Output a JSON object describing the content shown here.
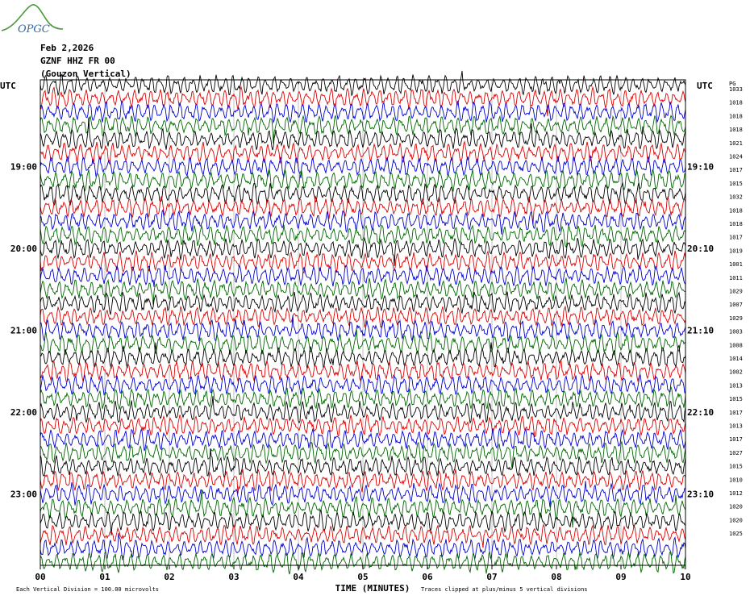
{
  "header": {
    "logo_text": "OPGC",
    "date": "Feb 2,2026",
    "station": "GZNF HHZ FR 00",
    "location": "(Gouzon Vertical)"
  },
  "axis": {
    "utc_left": "UTC",
    "utc_right": "UTC",
    "gain_header": "PG",
    "xlabel": "TIME (MINUTES)",
    "footer_left": "Each Vertical Division = 100.00 microvolts",
    "footer_right": "Traces clipped at plus/minus 5 vertical divisions"
  },
  "colors": {
    "trace_cycle": [
      "#000000",
      "#dd0000",
      "#0000cc",
      "#006600"
    ],
    "grid": "#9a9a9a",
    "logo": "#4a9a3a"
  },
  "chart_data": {
    "type": "line",
    "title": "GZNF HHZ FR 00 (Gouzon Vertical)",
    "xlabel": "TIME (MINUTES)",
    "x_ticks": [
      "00",
      "01",
      "02",
      "03",
      "04",
      "05",
      "06",
      "07",
      "08",
      "09",
      "10"
    ],
    "xlim": [
      0,
      10
    ],
    "trace_count": 36,
    "left_time_labels": [
      {
        "trace_index": 6,
        "label": "19:00"
      },
      {
        "trace_index": 12,
        "label": "20:00"
      },
      {
        "trace_index": 18,
        "label": "21:00"
      },
      {
        "trace_index": 24,
        "label": "22:00"
      },
      {
        "trace_index": 30,
        "label": "23:00"
      }
    ],
    "right_time_labels": [
      {
        "trace_index": 6,
        "label": "19:10"
      },
      {
        "trace_index": 12,
        "label": "20:10"
      },
      {
        "trace_index": 18,
        "label": "21:10"
      },
      {
        "trace_index": 24,
        "label": "22:10"
      },
      {
        "trace_index": 30,
        "label": "23:10"
      }
    ],
    "gain_values": [
      "1033",
      "1018",
      "1018",
      "1018",
      "1021",
      "1024",
      "1017",
      "1015",
      "1032",
      "1018",
      "1018",
      "1017",
      "1019",
      "1001",
      "1011",
      "1029",
      "1007",
      "1029",
      "1003",
      "1008",
      "1014",
      "1002",
      "1013",
      "1015",
      "1017",
      "1013",
      "1017",
      "1027",
      "1015",
      "1010",
      "1012",
      "1020",
      "1020",
      "1025"
    ],
    "trace_amplitude_divisions": 0.6,
    "clip_divisions": 5
  }
}
